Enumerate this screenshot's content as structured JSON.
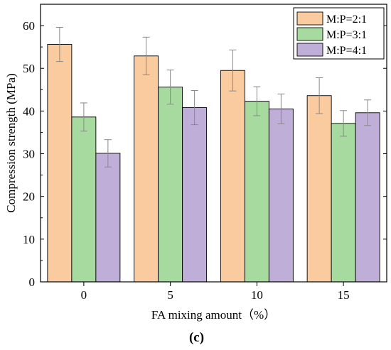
{
  "chart_data": {
    "type": "bar",
    "title": "",
    "subtitle": "(c)",
    "xlabel": "FA mixing amount（%）",
    "ylabel": "Compression strength (MPa)",
    "ylim": [
      0,
      65
    ],
    "yticks": [
      0,
      10,
      20,
      30,
      40,
      50,
      60
    ],
    "grid": false,
    "legend_position": "top-right",
    "categories": [
      "0",
      "5",
      "10",
      "15"
    ],
    "series": [
      {
        "name": "M:P=2:1",
        "color": "#FACB9E",
        "values": [
          55.6,
          52.9,
          49.5,
          43.6
        ],
        "errors": [
          4.0,
          4.4,
          4.8,
          4.2
        ]
      },
      {
        "name": "M:P=3:1",
        "color": "#A6DA9E",
        "values": [
          38.6,
          45.6,
          42.3,
          37.1
        ],
        "errors": [
          3.3,
          4.0,
          3.4,
          3.0
        ]
      },
      {
        "name": "M:P=4:1",
        "color": "#BFAFD8",
        "values": [
          30.1,
          40.8,
          40.5,
          39.6
        ],
        "errors": [
          3.2,
          4.0,
          3.5,
          3.0
        ]
      }
    ]
  }
}
